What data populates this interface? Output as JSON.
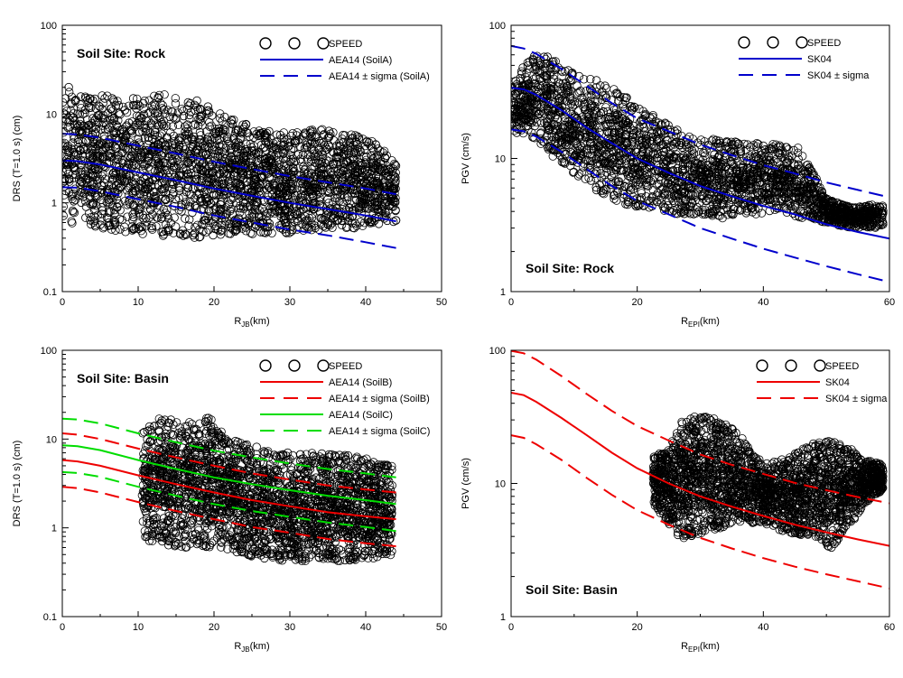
{
  "chart_data": [
    {
      "id": "tl",
      "type": "scatter",
      "site_label": "Soil Site: Rock",
      "ylabel": "DRS (T=1.0 s) (cm)",
      "xlabel_main": "R",
      "xlabel_sub": "JB",
      "xlabel_tail": "(km)",
      "x_axis": {
        "min": 0,
        "max": 50,
        "ticks": [
          0,
          10,
          20,
          30,
          40,
          50
        ]
      },
      "y_axis": {
        "scale": "log",
        "min": 0.1,
        "max": 100,
        "ticks": [
          0.1,
          1,
          10,
          100
        ],
        "tick_labels": [
          "0.1",
          "1",
          "10",
          "100"
        ]
      },
      "scatter_series": "SPEED",
      "cloud": [
        {
          "x": 0,
          "lo": 0.6,
          "hi": 22
        },
        {
          "x": 3,
          "lo": 0.55,
          "hi": 18
        },
        {
          "x": 6,
          "lo": 0.5,
          "hi": 16
        },
        {
          "x": 10,
          "lo": 0.45,
          "hi": 15
        },
        {
          "x": 14,
          "lo": 0.42,
          "hi": 17
        },
        {
          "x": 18,
          "lo": 0.4,
          "hi": 14
        },
        {
          "x": 22,
          "lo": 0.42,
          "hi": 9
        },
        {
          "x": 26,
          "lo": 0.42,
          "hi": 7
        },
        {
          "x": 30,
          "lo": 0.45,
          "hi": 6
        },
        {
          "x": 34,
          "lo": 0.5,
          "hi": 7
        },
        {
          "x": 38,
          "lo": 0.5,
          "hi": 6
        },
        {
          "x": 41,
          "lo": 0.55,
          "hi": 5
        },
        {
          "x": 44,
          "lo": 0.6,
          "hi": 3
        }
      ],
      "series": [
        {
          "name": "AEA14 (SoilA)",
          "color": "#0000cc",
          "dash": false,
          "x": [
            0,
            2,
            5,
            10,
            15,
            20,
            25,
            30,
            35,
            40,
            44
          ],
          "y": [
            3.0,
            2.95,
            2.7,
            2.2,
            1.8,
            1.45,
            1.2,
            1.0,
            0.85,
            0.72,
            0.62
          ]
        },
        {
          "name": "AEA14 ± sigma (SoilA)",
          "color": "#0000cc",
          "dash": true,
          "x": [
            0,
            2,
            5,
            10,
            15,
            20,
            25,
            30,
            35,
            40,
            44
          ],
          "y": [
            6.0,
            5.9,
            5.4,
            4.4,
            3.6,
            2.9,
            2.4,
            2.0,
            1.7,
            1.45,
            1.25
          ]
        },
        {
          "name": "",
          "color": "#0000cc",
          "dash": true,
          "x": [
            0,
            2,
            5,
            10,
            15,
            20,
            25,
            30,
            35,
            40,
            44
          ],
          "y": [
            1.5,
            1.48,
            1.35,
            1.1,
            0.9,
            0.72,
            0.6,
            0.5,
            0.43,
            0.36,
            0.31
          ]
        }
      ],
      "legend": [
        "SPEED",
        "AEA14 (SoilA)",
        "AEA14 ± sigma (SoilA)"
      ],
      "legend_placement": "top-right",
      "site_placement": "top-left"
    },
    {
      "id": "tr",
      "type": "scatter",
      "site_label": "Soil Site: Rock",
      "ylabel": "PGV (cm/s)",
      "xlabel_main": "R",
      "xlabel_sub": "EPI",
      "xlabel_tail": "(km)",
      "x_axis": {
        "min": 0,
        "max": 60,
        "ticks": [
          0,
          20,
          40,
          60
        ]
      },
      "y_axis": {
        "scale": "log",
        "min": 1,
        "max": 100,
        "ticks": [
          1,
          10,
          100
        ],
        "tick_labels": [
          "1",
          "10",
          "100"
        ]
      },
      "scatter_series": "SPEED",
      "cloud": [
        {
          "x": 0,
          "lo": 15,
          "hi": 35
        },
        {
          "x": 3,
          "lo": 14,
          "hi": 60
        },
        {
          "x": 6,
          "lo": 11,
          "hi": 58
        },
        {
          "x": 10,
          "lo": 7.5,
          "hi": 45
        },
        {
          "x": 14,
          "lo": 5.5,
          "hi": 38
        },
        {
          "x": 18,
          "lo": 4.5,
          "hi": 30
        },
        {
          "x": 22,
          "lo": 4.2,
          "hi": 22
        },
        {
          "x": 26,
          "lo": 3.8,
          "hi": 17
        },
        {
          "x": 30,
          "lo": 3.8,
          "hi": 14
        },
        {
          "x": 34,
          "lo": 3.5,
          "hi": 14
        },
        {
          "x": 38,
          "lo": 3.8,
          "hi": 13
        },
        {
          "x": 42,
          "lo": 3.8,
          "hi": 13
        },
        {
          "x": 46,
          "lo": 3.6,
          "hi": 12
        },
        {
          "x": 50,
          "lo": 3.3,
          "hi": 5
        },
        {
          "x": 54,
          "lo": 3.0,
          "hi": 4.3
        },
        {
          "x": 59,
          "lo": 3.0,
          "hi": 4.6
        }
      ],
      "series": [
        {
          "name": "SK04",
          "color": "#0000cc",
          "dash": false,
          "x": [
            0,
            2,
            4,
            8,
            12,
            16,
            20,
            25,
            30,
            35,
            40,
            45,
            50,
            55,
            60
          ],
          "y": [
            34,
            33,
            30,
            23,
            17,
            13,
            10,
            7.8,
            6.2,
            5.2,
            4.4,
            3.8,
            3.2,
            2.8,
            2.5
          ]
        },
        {
          "name": "SK04 ± sigma",
          "color": "#0000cc",
          "dash": true,
          "x": [
            0,
            2,
            4,
            8,
            12,
            16,
            20,
            25,
            30,
            35,
            40,
            45,
            50,
            55,
            60
          ],
          "y": [
            70,
            67,
            61,
            47,
            35,
            26,
            20,
            16,
            12.7,
            10.6,
            8.9,
            7.7,
            6.6,
            5.8,
            5.1
          ]
        },
        {
          "name": "",
          "color": "#0000cc",
          "dash": true,
          "x": [
            0,
            2,
            4,
            8,
            12,
            16,
            20,
            25,
            30,
            35,
            40,
            45,
            50,
            55,
            60
          ],
          "y": [
            16.5,
            16,
            14.6,
            11.2,
            8.3,
            6.2,
            4.8,
            3.8,
            3.0,
            2.5,
            2.1,
            1.8,
            1.55,
            1.35,
            1.18
          ]
        }
      ],
      "legend": [
        "SPEED",
        "SK04",
        "SK04 ± sigma"
      ],
      "legend_placement": "top-right",
      "site_placement": "bottom-left"
    },
    {
      "id": "bl",
      "type": "scatter",
      "site_label": "Soil Site: Basin",
      "ylabel": "DRS (T=1.0 s) (cm)",
      "xlabel_main": "R",
      "xlabel_sub": "JB",
      "xlabel_tail": "(km)",
      "x_axis": {
        "min": 0,
        "max": 50,
        "ticks": [
          0,
          10,
          20,
          30,
          40,
          50
        ]
      },
      "y_axis": {
        "scale": "log",
        "min": 0.1,
        "max": 100,
        "ticks": [
          0.1,
          1,
          10,
          100
        ],
        "tick_labels": [
          "0.1",
          "1",
          "10",
          "100"
        ]
      },
      "scatter_series": "SPEED",
      "cloud": [
        {
          "x": 10.5,
          "lo": 0.7,
          "hi": 12
        },
        {
          "x": 13,
          "lo": 0.65,
          "hi": 18
        },
        {
          "x": 16,
          "lo": 0.6,
          "hi": 15
        },
        {
          "x": 19,
          "lo": 0.6,
          "hi": 19
        },
        {
          "x": 22,
          "lo": 0.55,
          "hi": 10
        },
        {
          "x": 26,
          "lo": 0.45,
          "hi": 8
        },
        {
          "x": 30,
          "lo": 0.42,
          "hi": 7
        },
        {
          "x": 34,
          "lo": 0.42,
          "hi": 7
        },
        {
          "x": 38,
          "lo": 0.42,
          "hi": 6.5
        },
        {
          "x": 41,
          "lo": 0.45,
          "hi": 6
        },
        {
          "x": 43.5,
          "lo": 0.5,
          "hi": 5
        }
      ],
      "series": [
        {
          "name": "AEA14 (SoilB)",
          "color": "#ee0000",
          "dash": false,
          "x": [
            0,
            2,
            5,
            10,
            15,
            20,
            25,
            30,
            35,
            40,
            44
          ],
          "y": [
            5.8,
            5.6,
            5.0,
            3.9,
            3.1,
            2.5,
            2.05,
            1.75,
            1.5,
            1.35,
            1.25
          ]
        },
        {
          "name": "AEA14 ± sigma (SoilB)",
          "color": "#ee0000",
          "dash": true,
          "x": [
            0,
            2,
            5,
            10,
            15,
            20,
            25,
            30,
            35,
            40,
            44
          ],
          "y": [
            11.6,
            11.2,
            10.0,
            7.8,
            6.2,
            5.0,
            4.1,
            3.5,
            3.0,
            2.7,
            2.5
          ]
        },
        {
          "name": "",
          "color": "#ee0000",
          "dash": true,
          "x": [
            0,
            2,
            5,
            10,
            15,
            20,
            25,
            30,
            35,
            40,
            44
          ],
          "y": [
            2.9,
            2.8,
            2.5,
            1.95,
            1.55,
            1.25,
            1.02,
            0.88,
            0.75,
            0.67,
            0.62
          ]
        },
        {
          "name": "AEA14 (SoilC)",
          "color": "#00dd00",
          "dash": false,
          "x": [
            0,
            2,
            5,
            10,
            15,
            20,
            25,
            30,
            35,
            40,
            44
          ],
          "y": [
            8.5,
            8.3,
            7.5,
            5.8,
            4.6,
            3.7,
            3.1,
            2.65,
            2.3,
            2.05,
            1.85
          ]
        },
        {
          "name": "AEA14 ± sigma (SoilC)",
          "color": "#00dd00",
          "dash": true,
          "x": [
            0,
            2,
            5,
            10,
            15,
            20,
            25,
            30,
            35,
            40,
            44
          ],
          "y": [
            17,
            16.6,
            15,
            11.6,
            9.2,
            7.4,
            6.2,
            5.3,
            4.6,
            4.1,
            3.7
          ]
        },
        {
          "name": "",
          "color": "#00dd00",
          "dash": true,
          "x": [
            0,
            2,
            5,
            10,
            15,
            20,
            25,
            30,
            35,
            40,
            44
          ],
          "y": [
            4.25,
            4.15,
            3.75,
            2.9,
            2.3,
            1.85,
            1.55,
            1.33,
            1.15,
            1.02,
            0.92
          ]
        }
      ],
      "legend": [
        "SPEED",
        "AEA14 (SoilB)",
        "AEA14 ± sigma (SoilB)",
        "AEA14 (SoilC)",
        "AEA14 ± sigma (SoilC)"
      ],
      "legend_placement": "top-right",
      "site_placement": "top-left"
    },
    {
      "id": "br",
      "type": "scatter",
      "site_label": "Soil Site: Basin",
      "ylabel": "PGV (cm/s)",
      "xlabel_main": "R",
      "xlabel_sub": "EPI",
      "xlabel_tail": "(km)",
      "x_axis": {
        "min": 0,
        "max": 60,
        "ticks": [
          0,
          20,
          40,
          60
        ]
      },
      "y_axis": {
        "scale": "log",
        "min": 1,
        "max": 100,
        "ticks": [
          1,
          10,
          100
        ],
        "tick_labels": [
          "1",
          "10",
          "100"
        ]
      },
      "scatter_series": "SPEED",
      "cloud": [
        {
          "x": 22.5,
          "lo": 7,
          "hi": 16
        },
        {
          "x": 25,
          "lo": 5,
          "hi": 18
        },
        {
          "x": 27,
          "lo": 3.8,
          "hi": 30
        },
        {
          "x": 30,
          "lo": 4.2,
          "hi": 33
        },
        {
          "x": 33,
          "lo": 4.5,
          "hi": 30
        },
        {
          "x": 36,
          "lo": 5,
          "hi": 24
        },
        {
          "x": 40,
          "lo": 5,
          "hi": 14
        },
        {
          "x": 44,
          "lo": 4.2,
          "hi": 16
        },
        {
          "x": 48,
          "lo": 4.0,
          "hi": 20
        },
        {
          "x": 51,
          "lo": 3.2,
          "hi": 21
        },
        {
          "x": 54,
          "lo": 5,
          "hi": 18
        },
        {
          "x": 56,
          "lo": 7,
          "hi": 15
        },
        {
          "x": 59,
          "lo": 9,
          "hi": 14
        }
      ],
      "series": [
        {
          "name": "SK04",
          "color": "#ee0000",
          "dash": false,
          "x": [
            0,
            2,
            4,
            8,
            12,
            16,
            20,
            25,
            30,
            35,
            40,
            45,
            50,
            55,
            60
          ],
          "y": [
            48,
            46,
            41,
            31,
            23,
            17,
            13,
            10,
            8.0,
            6.7,
            5.7,
            4.9,
            4.3,
            3.8,
            3.4
          ]
        },
        {
          "name": "SK04 ± sigma",
          "color": "#ee0000",
          "dash": true,
          "x": [
            0,
            2,
            4,
            8,
            12,
            16,
            20,
            25,
            30,
            35,
            40,
            45,
            50,
            55,
            60
          ],
          "y": [
            99,
            95,
            85,
            64,
            47,
            35,
            27,
            21,
            16.5,
            13.8,
            11.8,
            10.1,
            8.9,
            7.9,
            7.1
          ]
        },
        {
          "name": "",
          "color": "#ee0000",
          "dash": true,
          "x": [
            0,
            2,
            4,
            8,
            12,
            16,
            20,
            25,
            30,
            35,
            40,
            45,
            50,
            55,
            60
          ],
          "y": [
            23,
            22,
            19.7,
            15,
            11,
            8.2,
            6.3,
            4.9,
            3.9,
            3.25,
            2.75,
            2.37,
            2.08,
            1.84,
            1.63
          ]
        }
      ],
      "legend": [
        "SPEED",
        "SK04",
        "SK04 ± sigma"
      ],
      "legend_placement": "top-right",
      "site_placement": "bottom-left"
    }
  ]
}
